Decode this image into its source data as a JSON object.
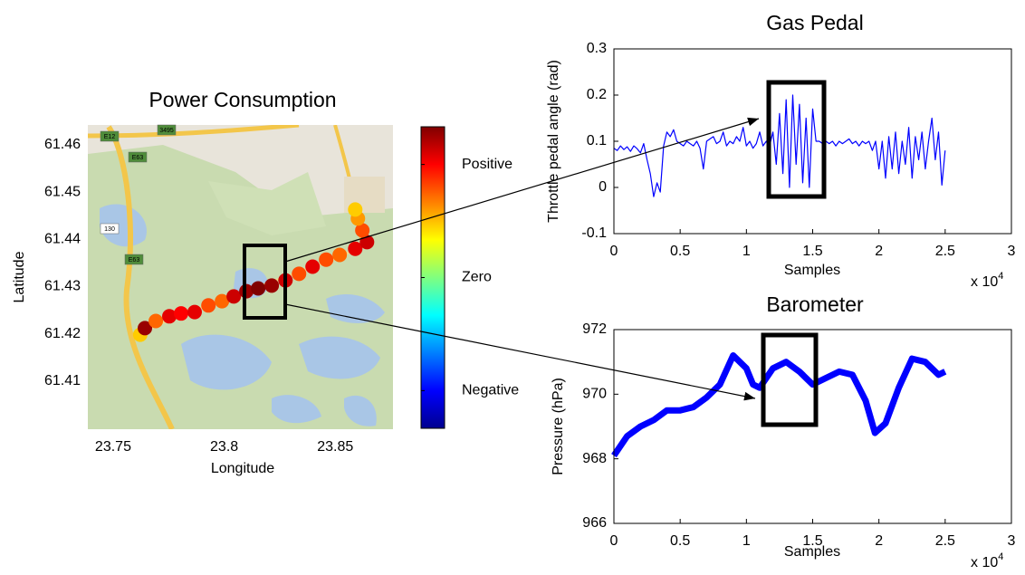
{
  "chart_data": [
    {
      "type": "scatter",
      "title": "Power Consumption",
      "x_label": "Longitude",
      "y_label": "Latitude",
      "xlim": [
        23.7386,
        23.876
      ],
      "ylim": [
        61.3998,
        61.4642
      ],
      "xticks": [
        23.75,
        23.8,
        23.85
      ],
      "yticks": [
        61.41,
        61.42,
        61.43,
        61.44,
        61.45,
        61.46
      ],
      "x": [
        23.7622,
        23.7643,
        23.7692,
        23.7753,
        23.7806,
        23.7867,
        23.7929,
        23.799,
        23.8043,
        23.81,
        23.8153,
        23.8214,
        23.8276,
        23.8337,
        23.8398,
        23.8459,
        23.852,
        23.859,
        23.8643,
        23.8622,
        23.8602,
        23.859
      ],
      "y": [
        61.4198,
        61.4212,
        61.4227,
        61.4237,
        61.4243,
        61.4246,
        61.426,
        61.4269,
        61.4279,
        61.429,
        61.4296,
        61.4302,
        61.4313,
        61.4327,
        61.4342,
        61.4357,
        61.4367,
        61.438,
        61.4394,
        61.4419,
        61.4444,
        61.4463
      ],
      "values": [
        0.35,
        0.95,
        0.55,
        0.8,
        0.75,
        0.8,
        0.6,
        0.55,
        0.85,
        0.95,
        1.0,
        0.95,
        0.85,
        0.6,
        0.8,
        0.6,
        0.55,
        0.8,
        0.85,
        0.6,
        0.45,
        0.35
      ],
      "colormap": "jet",
      "clim": [
        -1,
        1
      ],
      "colorbar_ticks": [
        {
          "value": 0.75,
          "label": "Positive"
        },
        {
          "value": 0,
          "label": "Zero"
        },
        {
          "value": -0.75,
          "label": "Negative"
        }
      ],
      "map_labels": [
        "E12",
        "3495",
        "E63",
        "130",
        "E63"
      ]
    },
    {
      "type": "line",
      "title": "Gas Pedal",
      "x_label": "Samples",
      "y_label": "Throttle pedal angle (rad)",
      "x_multiplier": {
        "base": "x 10",
        "exponent": "4"
      },
      "xlim": [
        0,
        3
      ],
      "ylim": [
        -0.1,
        0.3
      ],
      "xticks": [
        0,
        0.5,
        1,
        1.5,
        2,
        2.5,
        3
      ],
      "yticks": [
        -0.1,
        0,
        0.1,
        0.2,
        0.3
      ],
      "color": "#0000ff",
      "x": [
        0,
        0.025,
        0.05,
        0.075,
        0.1,
        0.125,
        0.15,
        0.175,
        0.2,
        0.225,
        0.25,
        0.275,
        0.3,
        0.325,
        0.35,
        0.375,
        0.4,
        0.425,
        0.45,
        0.475,
        0.5,
        0.525,
        0.55,
        0.575,
        0.6,
        0.625,
        0.65,
        0.675,
        0.7,
        0.725,
        0.75,
        0.775,
        0.8,
        0.825,
        0.85,
        0.875,
        0.9,
        0.925,
        0.95,
        0.975,
        1,
        1.025,
        1.05,
        1.075,
        1.1,
        1.125,
        1.15,
        1.175,
        1.2,
        1.225,
        1.25,
        1.275,
        1.3,
        1.325,
        1.35,
        1.375,
        1.4,
        1.425,
        1.45,
        1.475,
        1.5,
        1.525,
        1.55,
        1.575,
        1.6,
        1.625,
        1.65,
        1.675,
        1.7,
        1.725,
        1.75,
        1.775,
        1.8,
        1.825,
        1.85,
        1.875,
        1.9,
        1.925,
        1.95,
        1.975,
        2,
        2.025,
        2.05,
        2.075,
        2.1,
        2.125,
        2.15,
        2.175,
        2.2,
        2.225,
        2.25,
        2.275,
        2.3,
        2.325,
        2.35,
        2.375,
        2.4,
        2.425,
        2.45,
        2.475,
        2.5
      ],
      "values": [
        0.085,
        0.08,
        0.09,
        0.082,
        0.088,
        0.078,
        0.09,
        0.084,
        0.075,
        0.095,
        0.06,
        0.03,
        -0.02,
        0.01,
        -0.01,
        0.09,
        0.12,
        0.11,
        0.125,
        0.1,
        0.095,
        0.09,
        0.1,
        0.095,
        0.09,
        0.1,
        0.085,
        0.04,
        0.1,
        0.105,
        0.11,
        0.095,
        0.1,
        0.12,
        0.09,
        0.1,
        0.095,
        0.11,
        0.1,
        0.13,
        0.09,
        0.1,
        0.085,
        0.095,
        0.12,
        0.09,
        0.1,
        0.09,
        0.12,
        0.05,
        0.16,
        0.03,
        0.19,
        0.0,
        0.2,
        0.05,
        0.18,
        0.01,
        0.15,
        0.0,
        0.17,
        0.1,
        0.1,
        0.095,
        0.1,
        0.095,
        0.1,
        0.09,
        0.1,
        0.095,
        0.1,
        0.105,
        0.095,
        0.1,
        0.09,
        0.1,
        0.095,
        0.1,
        0.08,
        0.1,
        0.04,
        0.1,
        0.02,
        0.11,
        0.04,
        0.12,
        0.03,
        0.1,
        0.05,
        0.13,
        0.02,
        0.11,
        0.06,
        0.12,
        0.04,
        0.1,
        0.15,
        0.06,
        0.12,
        0.005,
        0.08
      ]
    },
    {
      "type": "line",
      "title": "Barometer",
      "x_label": "Samples",
      "y_label": "Pressure (hPa)",
      "x_multiplier": {
        "base": "x 10",
        "exponent": "4"
      },
      "xlim": [
        0,
        3
      ],
      "ylim": [
        966,
        972
      ],
      "xticks": [
        0,
        0.5,
        1,
        1.5,
        2,
        2.5,
        3
      ],
      "yticks": [
        966,
        968,
        970,
        972
      ],
      "color": "#0000ff",
      "x": [
        0,
        0.1,
        0.2,
        0.3,
        0.4,
        0.5,
        0.6,
        0.7,
        0.8,
        0.9,
        1.0,
        1.05,
        1.1,
        1.2,
        1.3,
        1.4,
        1.5,
        1.6,
        1.7,
        1.8,
        1.9,
        1.97,
        2.05,
        2.15,
        2.25,
        2.35,
        2.45,
        2.5
      ],
      "values": [
        968.1,
        968.7,
        969.0,
        969.2,
        969.5,
        969.5,
        969.6,
        969.9,
        970.3,
        971.2,
        970.8,
        970.3,
        970.2,
        970.8,
        971.0,
        970.7,
        970.3,
        970.5,
        970.7,
        970.6,
        969.8,
        968.8,
        969.1,
        970.2,
        971.1,
        971.0,
        970.6,
        970.7
      ]
    }
  ]
}
